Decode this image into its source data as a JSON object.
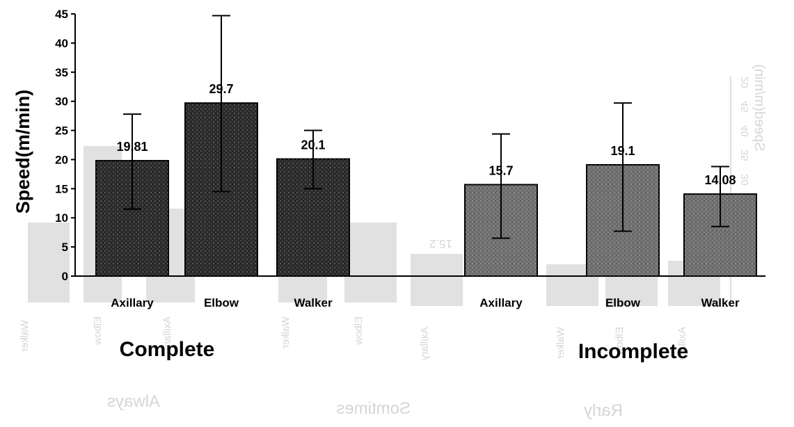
{
  "chart_data": {
    "type": "bar",
    "ylabel": "Speed(m/min)",
    "ylim": [
      0,
      45
    ],
    "yticks": [
      0,
      5,
      10,
      15,
      20,
      25,
      30,
      35,
      40,
      45
    ],
    "groups": [
      "Complete",
      "Incomplete"
    ],
    "bars": [
      {
        "group": "Complete",
        "category": "Axillary",
        "value": 19.81,
        "label": "19.81",
        "err_low": 11.5,
        "err_high": 27.8
      },
      {
        "group": "Complete",
        "category": "Elbow",
        "value": 29.7,
        "label": "29.7",
        "err_low": 14.5,
        "err_high": 44.7
      },
      {
        "group": "Complete",
        "category": "Walker",
        "value": 20.1,
        "label": "20.1",
        "err_low": 15,
        "err_high": 25
      },
      {
        "group": "Incomplete",
        "category": "Axillary",
        "value": 15.7,
        "label": "15.7",
        "err_low": 6.5,
        "err_high": 24.4
      },
      {
        "group": "Incomplete",
        "category": "Elbow",
        "value": 19.1,
        "label": "19.1",
        "err_low": 7.7,
        "err_high": 29.7
      },
      {
        "group": "Incomplete",
        "category": "Walker",
        "value": 14.08,
        "label": "14.08",
        "err_low": 8.5,
        "err_high": 18.8
      }
    ],
    "bar_colors": {
      "Complete": "#2a2a2a",
      "Incomplete": "#6e6e6e"
    }
  },
  "bleed_through": {
    "labels": [
      "Always",
      "Somtimes",
      "Rarly"
    ],
    "axis_label": "Speed(m/min)",
    "ticks": [
      "20",
      "45",
      "40",
      "35",
      "30"
    ],
    "value_label": "15.2",
    "bar_labels": [
      "Walker",
      "Elbow",
      "Axillary",
      "Walker",
      "Elbow",
      "Axillary",
      "Walker",
      "Elbow",
      "Axillary"
    ]
  }
}
